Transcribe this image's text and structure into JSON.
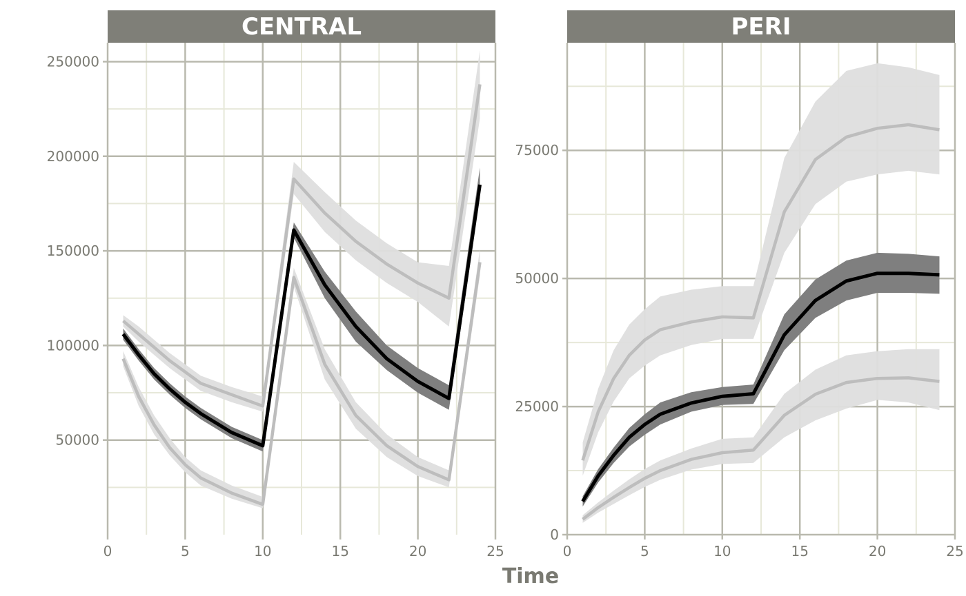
{
  "chart_data": {
    "type": "line",
    "xlabel": "Time",
    "ylabel": "",
    "colors": {
      "strip": "#7f7f78",
      "grid_major": "#b9b9ae",
      "grid_minor": "#e7e8d9",
      "band_outer": "#dedede",
      "line_outer": "#bdbdbd",
      "band_median": "#7f7f7f",
      "line_median": "#000000"
    },
    "panels": [
      {
        "strip": "CENTRAL",
        "xlim": [
          0,
          25
        ],
        "ylim": [
          0,
          260000
        ],
        "xticks": [
          0,
          5,
          10,
          15,
          20,
          25
        ],
        "xtick_labels": [
          "0",
          "5",
          "10",
          "15",
          "20",
          "25"
        ],
        "yticks": [
          50000,
          100000,
          150000,
          200000,
          250000
        ],
        "ytick_labels": [
          "50000",
          "100000",
          "150000",
          "200000",
          "250000"
        ],
        "x": [
          1,
          2,
          3,
          4,
          5,
          6,
          8,
          10,
          12,
          14,
          16,
          18,
          20,
          22,
          24
        ],
        "series": [
          {
            "role": "upper",
            "values": [
              113000,
              106000,
              99000,
              92000,
              86000,
              80000,
              74000,
              68000,
              188000,
              170000,
              155000,
              143000,
              133000,
              125000,
              238000
            ],
            "lo": [
              110000,
              102000,
              95000,
              88000,
              82000,
              76000,
              70000,
              65000,
              180000,
              160000,
              145000,
              133000,
              123000,
              110000,
              220000
            ],
            "hi": [
              116000,
              110000,
              103000,
              96000,
              90000,
              84000,
              78000,
              73000,
              197000,
              181000,
              166000,
              154000,
              144000,
              142000,
              256000
            ]
          },
          {
            "role": "median",
            "values": [
              106000,
              95000,
              85000,
              77000,
              70000,
              64000,
              54000,
              47000,
              161000,
              132000,
              110000,
              93000,
              81000,
              72000,
              185000
            ],
            "lo": [
              103000,
              92000,
              82000,
              74000,
              67000,
              61000,
              51000,
              44000,
              157000,
              125000,
              102000,
              87000,
              75000,
              66000,
              178000
            ],
            "hi": [
              109000,
              98000,
              88000,
              80000,
              73000,
              67000,
              57000,
              50000,
              165000,
              139000,
              118000,
              100000,
              88000,
              79000,
              194000
            ]
          },
          {
            "role": "lower",
            "values": [
              93000,
              73000,
              58000,
              46000,
              37000,
              30000,
              22000,
              16000,
              136000,
              90000,
              63000,
              47000,
              36000,
              29000,
              144000
            ],
            "lo": [
              89000,
              68000,
              53000,
              42000,
              33000,
              26000,
              19000,
              14000,
              131000,
              82000,
              56000,
              41000,
              31000,
              25000,
              137000
            ],
            "hi": [
              97000,
              78000,
              63000,
              51000,
              41000,
              34000,
              26000,
              20000,
              141000,
              98000,
              70000,
              53000,
              41000,
              34000,
              151000
            ]
          }
        ]
      },
      {
        "strip": "PERI",
        "xlim": [
          0,
          25
        ],
        "ylim": [
          0,
          96000
        ],
        "xticks": [
          0,
          5,
          10,
          15,
          20,
          25
        ],
        "xtick_labels": [
          "0",
          "5",
          "10",
          "15",
          "20",
          "25"
        ],
        "yticks": [
          0,
          25000,
          50000,
          75000
        ],
        "ytick_labels": [
          "0",
          "25000",
          "50000",
          "75000"
        ],
        "x": [
          1,
          2,
          3,
          4,
          5,
          6,
          8,
          10,
          12,
          14,
          16,
          18,
          20,
          22,
          24
        ],
        "series": [
          {
            "role": "upper",
            "values": [
              14500,
              24000,
              30500,
              35000,
              38000,
              40000,
              41500,
              42500,
              42300,
              63000,
              73200,
              77600,
              79300,
              80000,
              79000
            ],
            "lo": [
              11500,
              20000,
              26000,
              30500,
              33000,
              35000,
              37000,
              38200,
              38200,
              55000,
              64500,
              68900,
              70300,
              71000,
              70300
            ],
            "hi": [
              18000,
              28500,
              36000,
              41000,
              44000,
              46500,
              47800,
              48500,
              48500,
              73500,
              84500,
              90500,
              92000,
              91200,
              89700
            ]
          },
          {
            "role": "median",
            "values": [
              6500,
              11500,
              15500,
              19000,
              21500,
              23500,
              25700,
              27000,
              27500,
              39000,
              45700,
              49500,
              51000,
              51000,
              50700
            ],
            "lo": [
              5500,
              10200,
              14000,
              17200,
              19500,
              21500,
              24000,
              25300,
              25500,
              36000,
              42300,
              45700,
              47200,
              47200,
              47000
            ],
            "hi": [
              7500,
              12800,
              17000,
              20800,
              23500,
              25800,
              27800,
              28800,
              29300,
              43000,
              49800,
              53500,
              55000,
              54800,
              54300
            ]
          },
          {
            "role": "lower",
            "values": [
              3000,
              5300,
              7300,
              9200,
              11000,
              12500,
              14700,
              16000,
              16500,
              23300,
              27400,
              29700,
              30500,
              30600,
              29900
            ],
            "lo": [
              2300,
              4300,
              6000,
              7700,
              9300,
              10700,
              12700,
              13800,
              14000,
              19000,
              22300,
              24600,
              26300,
              25800,
              24300
            ],
            "hi": [
              3800,
              6300,
              8600,
              10800,
              12800,
              14500,
              16800,
              18700,
              19000,
              27500,
              32200,
              35000,
              35800,
              36200,
              36200
            ]
          }
        ]
      }
    ]
  }
}
